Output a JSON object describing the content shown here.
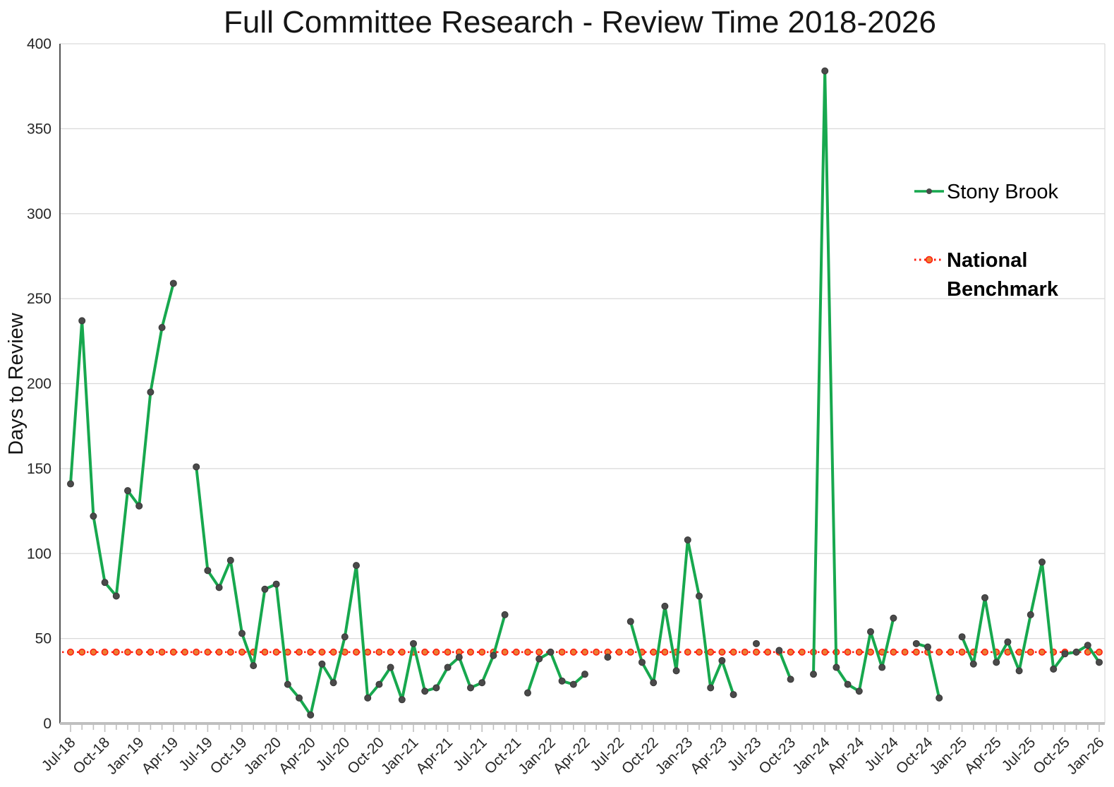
{
  "chart_data": {
    "type": "line",
    "title": "Full Committee Research - Review Time 2018-2026",
    "ylabel": "Days to Review",
    "ylim": [
      0,
      400
    ],
    "ytick_step": 50,
    "grid": true,
    "legend_position": "right-upper",
    "categories": [
      "Jul-18",
      "Aug-18",
      "Sep-18",
      "Oct-18",
      "Nov-18",
      "Dec-18",
      "Jan-19",
      "Feb-19",
      "Mar-19",
      "Apr-19",
      "May-19",
      "Jun-19",
      "Jul-19",
      "Aug-19",
      "Sep-19",
      "Oct-19",
      "Nov-19",
      "Dec-19",
      "Jan-20",
      "Feb-20",
      "Mar-20",
      "Apr-20",
      "May-20",
      "Jun-20",
      "Jul-20",
      "Aug-20",
      "Sep-20",
      "Oct-20",
      "Nov-20",
      "Dec-20",
      "Jan-21",
      "Feb-21",
      "Mar-21",
      "Apr-21",
      "May-21",
      "Jun-21",
      "Jul-21",
      "Aug-21",
      "Sep-21",
      "Oct-21",
      "Nov-21",
      "Dec-21",
      "Jan-22",
      "Feb-22",
      "Mar-22",
      "Apr-22",
      "May-22",
      "Jun-22",
      "Jul-22",
      "Aug-22",
      "Sep-22",
      "Oct-22",
      "Nov-22",
      "Dec-22",
      "Jan-23",
      "Feb-23",
      "Mar-23",
      "Apr-23",
      "May-23",
      "Jun-23",
      "Jul-23",
      "Aug-23",
      "Sep-23",
      "Oct-23",
      "Nov-23",
      "Dec-23",
      "Jan-24",
      "Feb-24",
      "Mar-24",
      "Apr-24",
      "May-24",
      "Jun-24",
      "Jul-24",
      "Aug-24",
      "Sep-24",
      "Oct-24",
      "Nov-24",
      "Dec-24",
      "Jan-25",
      "Feb-25",
      "Mar-25",
      "Apr-25",
      "May-25",
      "Jun-25",
      "Jul-25",
      "Aug-25",
      "Sep-25",
      "Oct-25",
      "Nov-25",
      "Dec-25",
      "Jan-26"
    ],
    "xtick_every": 3,
    "series": [
      {
        "name": "Stony Brook",
        "color": "#17a84e",
        "marker_color": "#4a4a4a",
        "values": [
          141,
          237,
          122,
          83,
          75,
          137,
          128,
          195,
          233,
          259,
          null,
          151,
          90,
          80,
          96,
          53,
          34,
          79,
          82,
          23,
          15,
          5,
          35,
          24,
          51,
          93,
          15,
          23,
          33,
          14,
          47,
          19,
          21,
          33,
          39,
          21,
          24,
          40,
          64,
          null,
          18,
          38,
          42,
          25,
          23,
          29,
          null,
          39,
          null,
          60,
          36,
          24,
          69,
          31,
          108,
          75,
          21,
          37,
          17,
          null,
          47,
          null,
          43,
          26,
          null,
          29,
          384,
          33,
          23,
          19,
          54,
          33,
          62,
          null,
          47,
          45,
          15,
          null,
          51,
          35,
          74,
          36,
          48,
          31,
          64,
          95,
          32,
          41,
          42,
          46,
          36
        ]
      }
    ],
    "benchmark": {
      "name": "National Benchmark",
      "value": 42,
      "line_color": "#ff1a0e",
      "marker_fill": "#ed7d31"
    }
  },
  "legend": {
    "stony_brook_label": "Stony Brook",
    "benchmark_label_line1": "National",
    "benchmark_label_line2": "Benchmark"
  },
  "colors": {
    "gridline": "#d9d9d9",
    "x_axis": "#bfbfbf",
    "y_axis": "#404040",
    "text": "#262626"
  }
}
